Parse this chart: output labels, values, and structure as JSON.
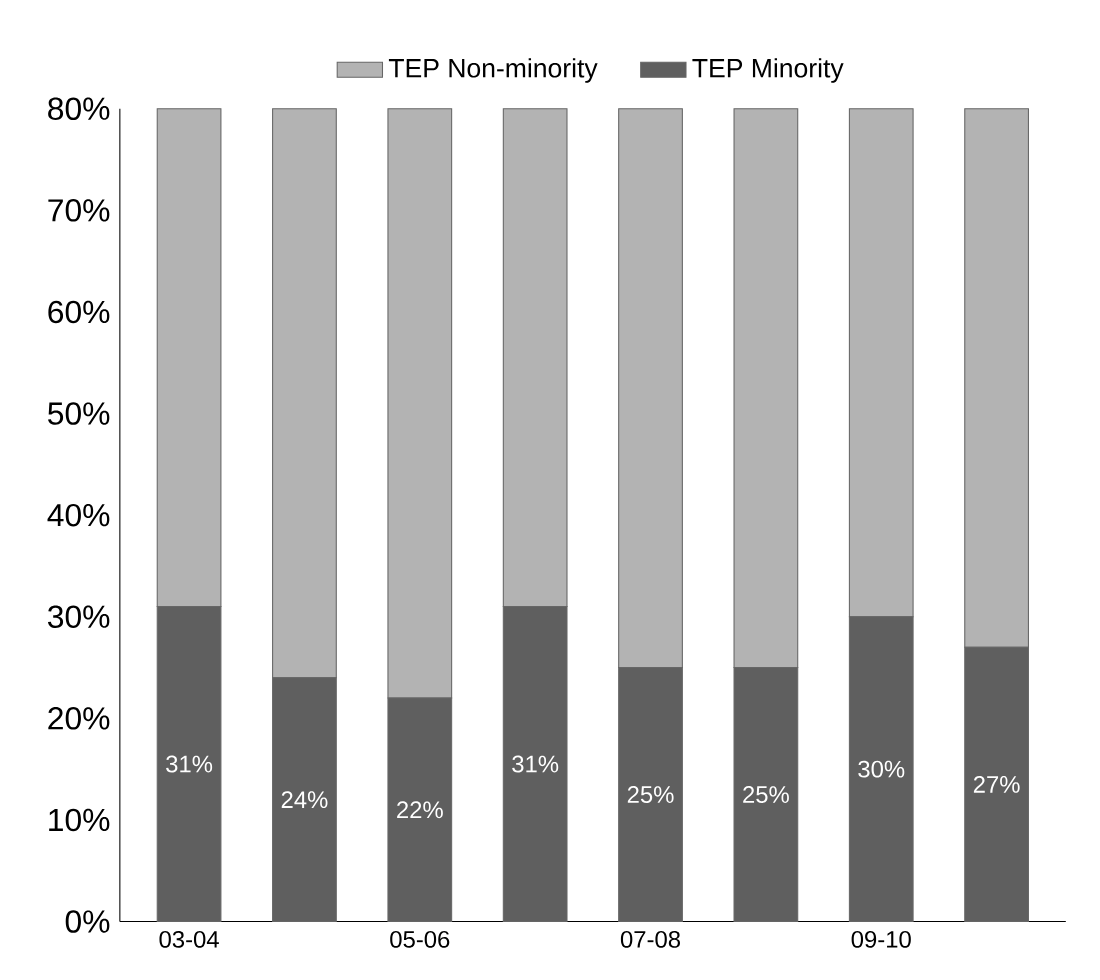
{
  "chart_data": {
    "type": "bar",
    "stacked": true,
    "categories": [
      "03-04",
      null,
      "05-06",
      null,
      "07-08",
      null,
      "09-10",
      null
    ],
    "series": [
      {
        "name": "TEP Minority",
        "color": "#5f5f5f",
        "values": [
          31,
          24,
          22,
          31,
          25,
          25,
          30,
          27
        ],
        "value_labels": [
          "31%",
          "24%",
          "22%",
          "31%",
          "25%",
          "25%",
          "30%",
          "27%"
        ]
      },
      {
        "name": "TEP  Non-minority",
        "color": "#b3b3b3",
        "values": [
          49,
          56,
          58,
          49,
          55,
          55,
          50,
          53
        ]
      }
    ],
    "ylim": [
      0,
      80
    ],
    "yticks": [
      {
        "value": 0,
        "label": "0%"
      },
      {
        "value": 10,
        "label": "10%"
      },
      {
        "value": 20,
        "label": "20%"
      },
      {
        "value": 30,
        "label": "30%"
      },
      {
        "value": 40,
        "label": "40%"
      },
      {
        "value": 50,
        "label": "50%"
      },
      {
        "value": 60,
        "label": "60%"
      },
      {
        "value": 70,
        "label": "70%"
      },
      {
        "value": 80,
        "label": "80%"
      }
    ],
    "grid": false,
    "legend": "top"
  }
}
